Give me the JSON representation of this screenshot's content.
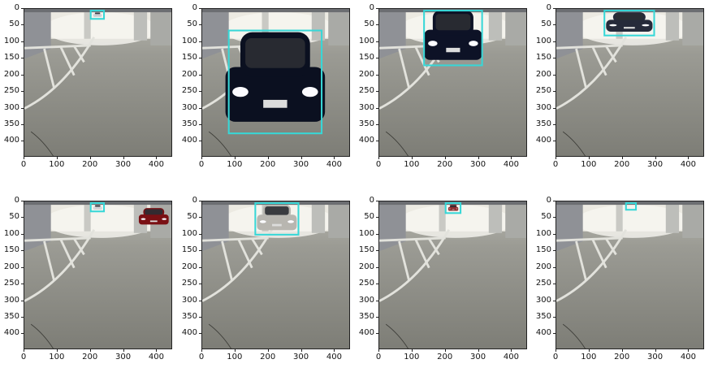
{
  "figure": {
    "axis_ticks_x": [
      "0",
      "100",
      "200",
      "300",
      "400"
    ],
    "axis_ticks_y": [
      "0",
      "50",
      "100",
      "150",
      "200",
      "250",
      "300",
      "350",
      "400"
    ],
    "axis_range": [
      0,
      448
    ],
    "box_color": "#37d7d7",
    "panels": [
      {
        "scene": "far-box",
        "box": [
          200,
          5,
          240,
          30
        ]
      },
      {
        "scene": "close-car",
        "box": [
          80,
          65,
          360,
          375
        ]
      },
      {
        "scene": "mid-car",
        "box": [
          135,
          5,
          310,
          170
        ]
      },
      {
        "scene": "far-dark-car",
        "box": [
          145,
          5,
          295,
          80
        ]
      },
      {
        "scene": "tiny-car-side-red",
        "box": [
          200,
          5,
          240,
          30
        ]
      },
      {
        "scene": "silver-car",
        "box": [
          160,
          5,
          290,
          100
        ]
      },
      {
        "scene": "tiny-red",
        "box": [
          200,
          5,
          245,
          35
        ]
      },
      {
        "scene": "tiny-box",
        "box": [
          210,
          5,
          240,
          25
        ]
      }
    ]
  }
}
